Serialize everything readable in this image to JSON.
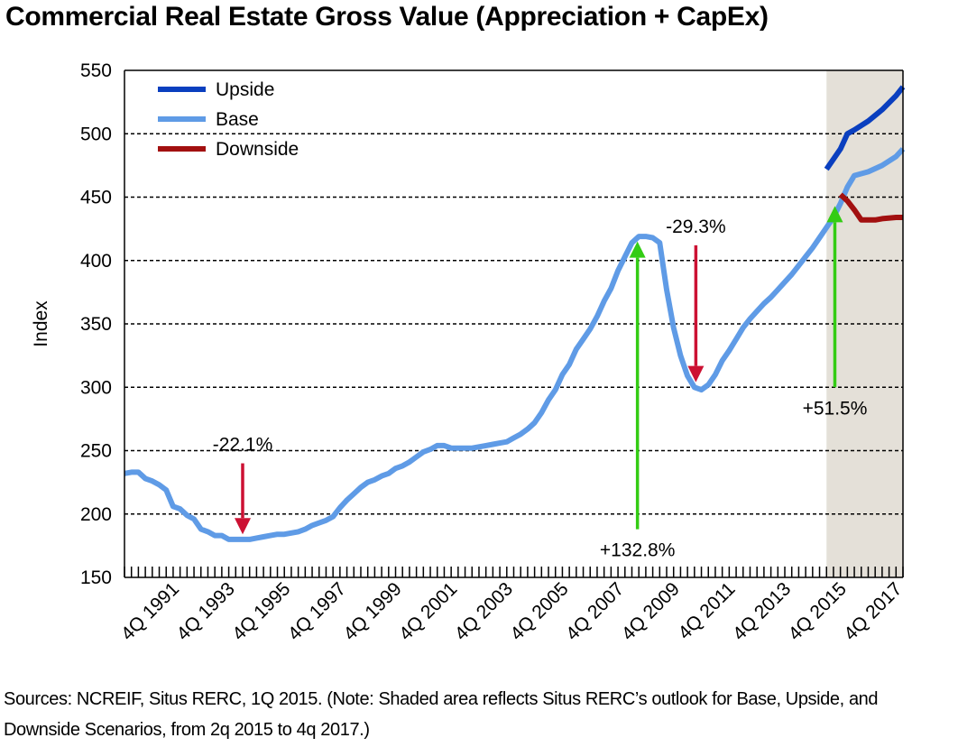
{
  "title": "Commercial Real Estate Gross Value  (Appreciation + CapEx)",
  "sources": "Sources: NCREIF, Situs RERC, 1Q 2015. (Note: Shaded area reflects Situs RERC’s outlook for Base, Upside, and Downside Scenarios, from 2q 2015 to 4q 2017.)",
  "colors": {
    "upside": "#0a3fbf",
    "base": "#5f9be6",
    "downside": "#a21010",
    "shade": "#e4e0d8",
    "arrow_up": "#33cc14",
    "arrow_down": "#cc1133"
  },
  "chart_data": {
    "type": "line",
    "title": "Commercial Real Estate Gross Value  (Appreciation + CapEx)",
    "xlabel": "",
    "ylabel": "Index",
    "ylim": [
      150,
      550
    ],
    "yticks": [
      150,
      200,
      250,
      300,
      350,
      400,
      450,
      500,
      550
    ],
    "x_tick_labels": [
      "4Q 1991",
      "4Q 1993",
      "4Q 1995",
      "4Q 1997",
      "4Q 1999",
      "4Q 2001",
      "4Q 2003",
      "4Q 2005",
      "4Q 2007",
      "4Q 2009",
      "4Q 2011",
      "4Q 2013",
      "4Q 2015",
      "4Q 2017"
    ],
    "x_tick_years": [
      1991.75,
      1993.75,
      1995.75,
      1997.75,
      1999.75,
      2001.75,
      2003.75,
      2005.75,
      2007.75,
      2009.75,
      2011.75,
      2013.75,
      2015.75,
      2017.75
    ],
    "xlim": [
      1989.75,
      2017.75
    ],
    "grid": "horizontal dashed",
    "legend_position": "top-left",
    "shaded_region": [
      2015.0,
      2017.75
    ],
    "series": [
      {
        "name": "Upside",
        "points": [
          [
            2015.0,
            472
          ],
          [
            2015.25,
            480
          ],
          [
            2015.5,
            488
          ],
          [
            2015.75,
            500
          ],
          [
            2016.0,
            503
          ],
          [
            2016.5,
            510
          ],
          [
            2017.0,
            519
          ],
          [
            2017.5,
            530
          ],
          [
            2017.75,
            537
          ]
        ]
      },
      {
        "name": "Base",
        "points": [
          [
            1989.75,
            232
          ],
          [
            1990.0,
            233
          ],
          [
            1990.25,
            233
          ],
          [
            1990.5,
            228
          ],
          [
            1990.75,
            226
          ],
          [
            1991.0,
            223
          ],
          [
            1991.25,
            219
          ],
          [
            1991.5,
            206
          ],
          [
            1991.75,
            204
          ],
          [
            1992.0,
            199
          ],
          [
            1992.25,
            196
          ],
          [
            1992.5,
            188
          ],
          [
            1992.75,
            186
          ],
          [
            1993.0,
            183
          ],
          [
            1993.25,
            183
          ],
          [
            1993.5,
            180
          ],
          [
            1993.75,
            180
          ],
          [
            1994.0,
            180
          ],
          [
            1994.25,
            180
          ],
          [
            1994.5,
            181
          ],
          [
            1994.75,
            182
          ],
          [
            1995.0,
            183
          ],
          [
            1995.25,
            184
          ],
          [
            1995.5,
            184
          ],
          [
            1995.75,
            185
          ],
          [
            1996.0,
            186
          ],
          [
            1996.25,
            188
          ],
          [
            1996.5,
            191
          ],
          [
            1996.75,
            193
          ],
          [
            1997.0,
            195
          ],
          [
            1997.25,
            198
          ],
          [
            1997.5,
            205
          ],
          [
            1997.75,
            211
          ],
          [
            1998.0,
            216
          ],
          [
            1998.25,
            221
          ],
          [
            1998.5,
            225
          ],
          [
            1998.75,
            227
          ],
          [
            1999.0,
            230
          ],
          [
            1999.25,
            232
          ],
          [
            1999.5,
            236
          ],
          [
            1999.75,
            238
          ],
          [
            2000.0,
            241
          ],
          [
            2000.25,
            245
          ],
          [
            2000.5,
            249
          ],
          [
            2000.75,
            251
          ],
          [
            2001.0,
            254
          ],
          [
            2001.25,
            254
          ],
          [
            2001.5,
            252
          ],
          [
            2001.75,
            252
          ],
          [
            2002.0,
            252
          ],
          [
            2002.25,
            252
          ],
          [
            2002.5,
            253
          ],
          [
            2002.75,
            254
          ],
          [
            2003.0,
            255
          ],
          [
            2003.25,
            256
          ],
          [
            2003.5,
            257
          ],
          [
            2003.75,
            260
          ],
          [
            2004.0,
            263
          ],
          [
            2004.25,
            267
          ],
          [
            2004.5,
            272
          ],
          [
            2004.75,
            280
          ],
          [
            2005.0,
            290
          ],
          [
            2005.25,
            298
          ],
          [
            2005.5,
            310
          ],
          [
            2005.75,
            318
          ],
          [
            2006.0,
            330
          ],
          [
            2006.25,
            338
          ],
          [
            2006.5,
            346
          ],
          [
            2006.75,
            356
          ],
          [
            2007.0,
            368
          ],
          [
            2007.25,
            378
          ],
          [
            2007.5,
            392
          ],
          [
            2007.75,
            403
          ],
          [
            2008.0,
            414
          ],
          [
            2008.25,
            419
          ],
          [
            2008.5,
            419
          ],
          [
            2008.75,
            418
          ],
          [
            2009.0,
            414
          ],
          [
            2009.25,
            377
          ],
          [
            2009.5,
            347
          ],
          [
            2009.75,
            325
          ],
          [
            2010.0,
            309
          ],
          [
            2010.25,
            300
          ],
          [
            2010.5,
            298
          ],
          [
            2010.75,
            302
          ],
          [
            2011.0,
            310
          ],
          [
            2011.25,
            321
          ],
          [
            2011.5,
            329
          ],
          [
            2011.75,
            338
          ],
          [
            2012.0,
            347
          ],
          [
            2012.25,
            354
          ],
          [
            2012.5,
            360
          ],
          [
            2012.75,
            366
          ],
          [
            2013.0,
            371
          ],
          [
            2013.25,
            377
          ],
          [
            2013.5,
            383
          ],
          [
            2013.75,
            389
          ],
          [
            2014.0,
            396
          ],
          [
            2014.25,
            403
          ],
          [
            2014.5,
            410
          ],
          [
            2014.75,
            418
          ],
          [
            2015.0,
            426
          ],
          [
            2015.25,
            434
          ],
          [
            2015.5,
            445
          ],
          [
            2015.75,
            458
          ],
          [
            2016.0,
            467
          ],
          [
            2016.5,
            470
          ],
          [
            2017.0,
            475
          ],
          [
            2017.5,
            482
          ],
          [
            2017.75,
            488
          ]
        ]
      },
      {
        "name": "Downside",
        "points": [
          [
            2015.5,
            452
          ],
          [
            2015.75,
            447
          ],
          [
            2016.0,
            440
          ],
          [
            2016.25,
            432
          ],
          [
            2016.75,
            432
          ],
          [
            2017.0,
            433
          ],
          [
            2017.5,
            434
          ],
          [
            2017.75,
            434
          ]
        ]
      }
    ],
    "annotations": [
      {
        "text": "-22.1%",
        "direction": "down",
        "x": 1994.0,
        "arrow_from": 240,
        "arrow_to": 184
      },
      {
        "text": "+132.8%",
        "direction": "up",
        "x": 2008.2,
        "arrow_from": 188,
        "arrow_to": 415
      },
      {
        "text": "-29.3%",
        "direction": "down",
        "x": 2010.3,
        "arrow_from": 412,
        "arrow_to": 304
      },
      {
        "text": "+51.5%",
        "direction": "up",
        "x": 2015.3,
        "arrow_from": 300,
        "arrow_to": 443
      }
    ]
  }
}
